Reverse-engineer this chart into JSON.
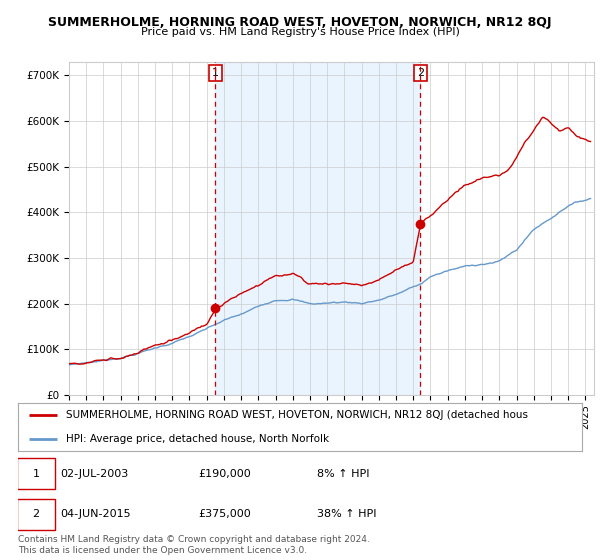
{
  "title": "SUMMERHOLME, HORNING ROAD WEST, HOVETON, NORWICH, NR12 8QJ",
  "subtitle": "Price paid vs. HM Land Registry's House Price Index (HPI)",
  "ylabel_ticks": [
    "£0",
    "£100K",
    "£200K",
    "£300K",
    "£400K",
    "£500K",
    "£600K",
    "£700K"
  ],
  "ytick_values": [
    0,
    100000,
    200000,
    300000,
    400000,
    500000,
    600000,
    700000
  ],
  "ylim": [
    0,
    730000
  ],
  "xlim_start": 1995.0,
  "xlim_end": 2025.5,
  "marker1_x": 2003.5,
  "marker1_price": 190000,
  "marker2_x": 2015.42,
  "marker2_price": 375000,
  "legend_line1": "SUMMERHOLME, HORNING ROAD WEST, HOVETON, NORWICH, NR12 8QJ (detached hous",
  "legend_line2": "HPI: Average price, detached house, North Norfolk",
  "annotation1_date": "02-JUL-2003",
  "annotation1_price": "£190,000",
  "annotation1_pct": "8% ↑ HPI",
  "annotation2_date": "04-JUN-2015",
  "annotation2_price": "£375,000",
  "annotation2_pct": "38% ↑ HPI",
  "footer": "Contains HM Land Registry data © Crown copyright and database right 2024.\nThis data is licensed under the Open Government Licence v3.0.",
  "red_color": "#cc0000",
  "blue_color": "#6699cc",
  "blue_fill": "#ddeeff",
  "vline_color": "#cc0000",
  "grid_color": "#cccccc",
  "title_fontsize": 9.0,
  "subtitle_fontsize": 8.0,
  "tick_fontsize": 7.5,
  "legend_fontsize": 7.5,
  "annot_fontsize": 8.0,
  "footer_fontsize": 6.5
}
